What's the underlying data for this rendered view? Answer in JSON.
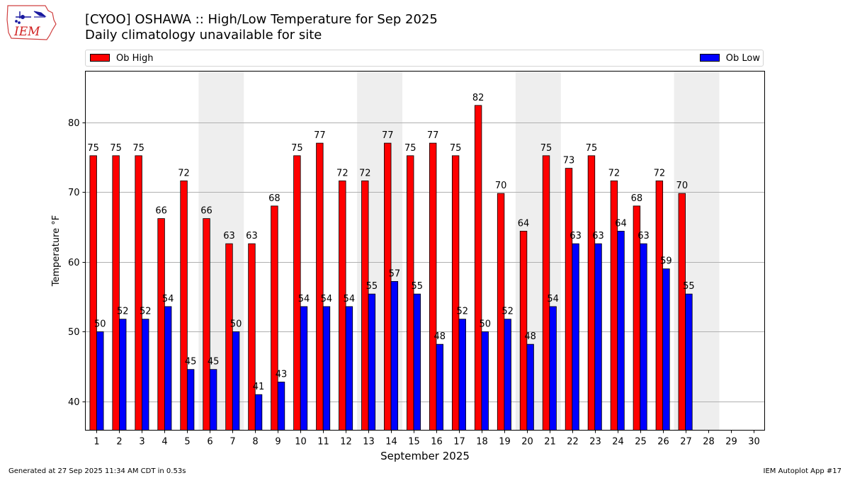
{
  "header": {
    "title_line1": "[CYOO] OSHAWA :: High/Low Temperature for Sep 2025",
    "title_line2": "Daily climatology unavailable for site"
  },
  "logo": {
    "text": "IEM",
    "icon": "iem-iowa-logo"
  },
  "footer": {
    "left": "Generated at 27 Sep 2025 11:34 AM CDT in 0.53s",
    "right": "IEM Autoplot App #17"
  },
  "colors": {
    "high": "#ff0000",
    "low": "#0000ff",
    "weekend_band": "#eeeeee",
    "grid": "#b0b0b0"
  },
  "chart_data": {
    "type": "bar",
    "title": "[CYOO] OSHAWA :: High/Low Temperature for Sep 2025",
    "subtitle": "Daily climatology unavailable for site",
    "xlabel": "September 2025",
    "ylabel": "Temperature °F",
    "ylim": [
      35.9,
      87.3
    ],
    "yticks": [
      40,
      50,
      60,
      70,
      80
    ],
    "grid": "horizontal",
    "legend_placement": "top",
    "categories": [
      "1",
      "2",
      "3",
      "4",
      "5",
      "6",
      "7",
      "8",
      "9",
      "10",
      "11",
      "12",
      "13",
      "14",
      "15",
      "16",
      "17",
      "18",
      "19",
      "20",
      "21",
      "22",
      "23",
      "24",
      "25",
      "26",
      "27",
      "28",
      "29",
      "30"
    ],
    "series": [
      {
        "name": "Ob High",
        "color": "#ff0000",
        "values": [
          75,
          75,
          75,
          66,
          72,
          66,
          63,
          63,
          68,
          75,
          77,
          72,
          72,
          77,
          75,
          77,
          75,
          82,
          70,
          64,
          75,
          73,
          75,
          72,
          68,
          72,
          70,
          null,
          null,
          null
        ],
        "plotted": [
          75.2,
          75.2,
          75.2,
          66.2,
          71.6,
          66.2,
          62.6,
          62.6,
          68.0,
          75.2,
          77.0,
          71.6,
          71.6,
          77.0,
          75.2,
          77.0,
          75.2,
          82.4,
          69.8,
          64.4,
          75.2,
          73.4,
          75.2,
          71.6,
          68.0,
          71.6,
          69.8,
          null,
          null,
          null
        ]
      },
      {
        "name": "Ob Low",
        "color": "#0000ff",
        "values": [
          50,
          52,
          52,
          54,
          45,
          45,
          50,
          41,
          43,
          54,
          54,
          54,
          55,
          57,
          55,
          48,
          52,
          50,
          52,
          48,
          54,
          63,
          63,
          64,
          63,
          59,
          55,
          null,
          null,
          null
        ],
        "plotted": [
          50.0,
          51.8,
          51.8,
          53.6,
          44.6,
          44.6,
          50.0,
          41.0,
          42.8,
          53.6,
          53.6,
          53.6,
          55.4,
          57.2,
          55.4,
          48.2,
          51.8,
          50.0,
          51.8,
          48.2,
          53.6,
          62.6,
          62.6,
          64.4,
          62.6,
          59.0,
          55.4,
          null,
          null,
          null
        ]
      }
    ],
    "weekend_bands": [
      [
        6,
        7
      ],
      [
        13,
        14
      ],
      [
        20,
        21
      ],
      [
        27,
        28
      ]
    ]
  }
}
